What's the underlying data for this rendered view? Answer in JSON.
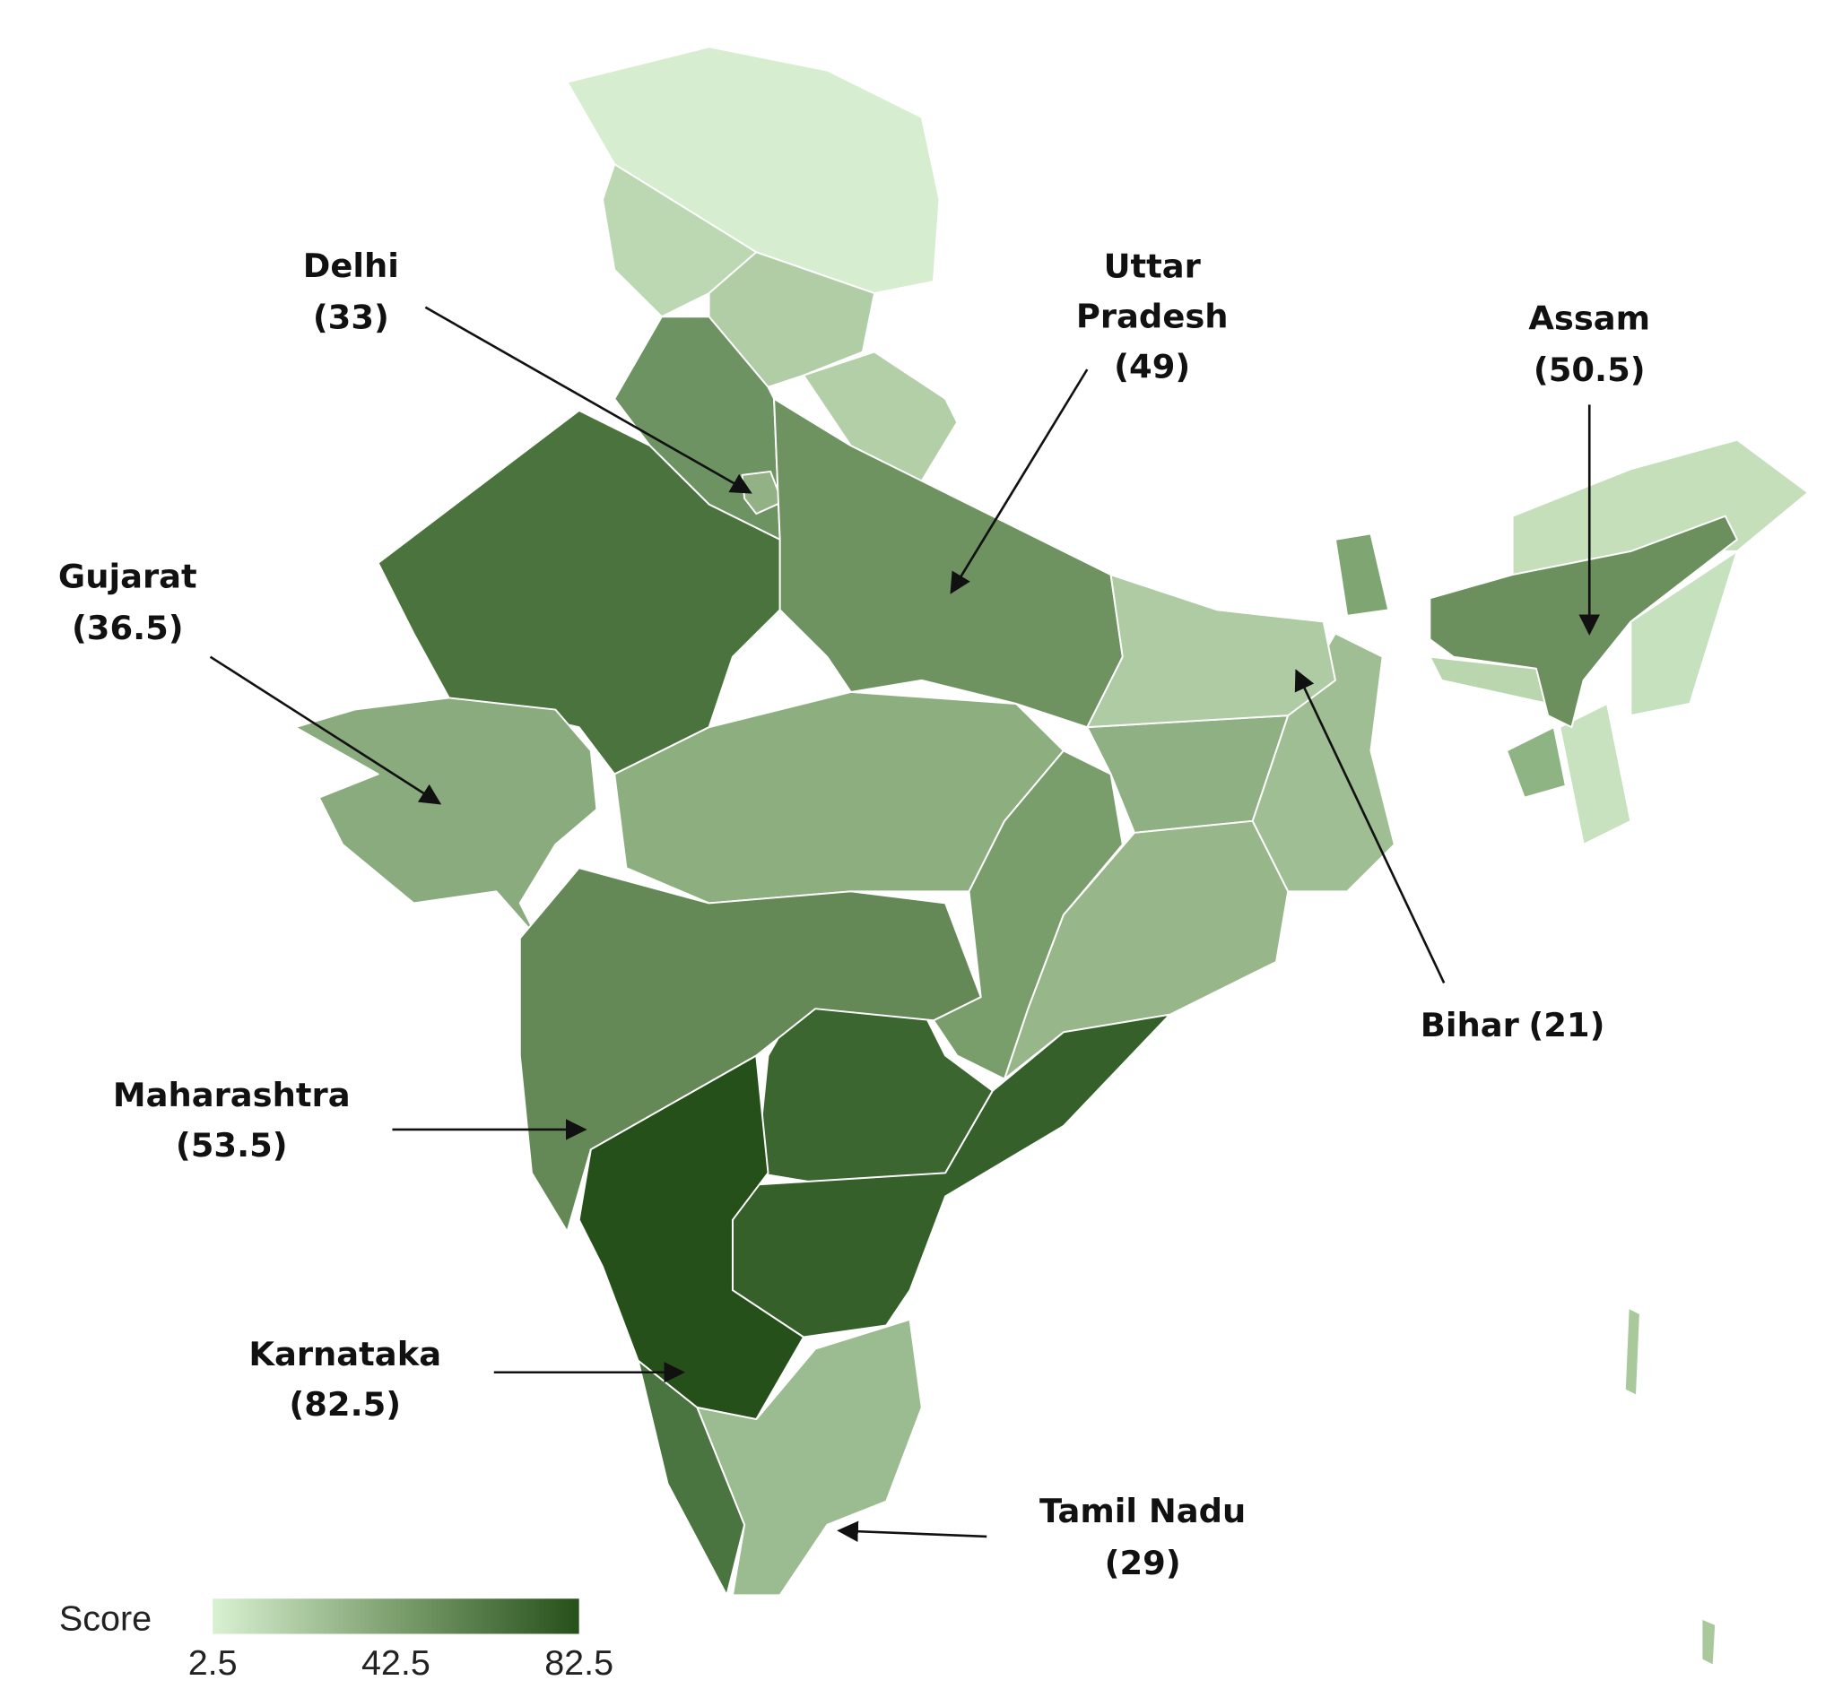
{
  "regions": [
    {
      "name": "Delhi",
      "value": 33,
      "value_label": "(33)"
    },
    {
      "name": "Uttar Pradesh",
      "value": 49,
      "value_label": "(49)"
    },
    {
      "name": "Assam",
      "value": 50.5,
      "value_label": "(50.5)"
    },
    {
      "name": "Gujarat",
      "value": 36.5,
      "value_label": "(36.5)"
    },
    {
      "name": "Bihar",
      "value": 21,
      "value_label": "(21)"
    },
    {
      "name": "Maharashtra",
      "value": 53.5,
      "value_label": "(53.5)"
    },
    {
      "name": "Karnataka",
      "value": 82.5,
      "value_label": "(82.5)"
    },
    {
      "name": "Tamil Nadu",
      "value": 29,
      "value_label": "(29)"
    }
  ],
  "legend": {
    "title": "Score",
    "range": [
      2.5,
      82.5
    ],
    "ticks": [
      2.5,
      42.5,
      82.5
    ],
    "colors": [
      "#d9f1d2",
      "#7c9f6e",
      "#26501a"
    ]
  }
}
